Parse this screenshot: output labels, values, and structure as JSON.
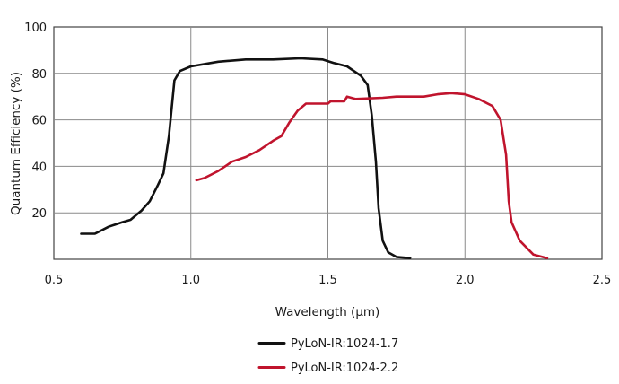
{
  "chart_data": {
    "type": "line",
    "xlabel": "Wavelength (µm)",
    "ylabel": "Quantum Efficiency  (%)",
    "xlim": [
      0.5,
      2.5
    ],
    "ylim": [
      0,
      100
    ],
    "x_ticks": [
      "0.5",
      "1.0",
      "1.5",
      "2.0",
      "2.5"
    ],
    "y_ticks": [
      "20",
      "40",
      "60",
      "80",
      "100"
    ],
    "grid": true,
    "legend_position": "bottom-center",
    "series": [
      {
        "name": "PyLoN-IR:1024-1.7",
        "color": "#111111",
        "points": [
          [
            0.6,
            11
          ],
          [
            0.65,
            11
          ],
          [
            0.7,
            14
          ],
          [
            0.75,
            16
          ],
          [
            0.78,
            17
          ],
          [
            0.82,
            21
          ],
          [
            0.85,
            25
          ],
          [
            0.88,
            32
          ],
          [
            0.9,
            37
          ],
          [
            0.92,
            53
          ],
          [
            0.94,
            77
          ],
          [
            0.96,
            81
          ],
          [
            1.0,
            83
          ],
          [
            1.1,
            85
          ],
          [
            1.2,
            86
          ],
          [
            1.3,
            86
          ],
          [
            1.4,
            86.5
          ],
          [
            1.48,
            86
          ],
          [
            1.52,
            84.5
          ],
          [
            1.57,
            83
          ],
          [
            1.62,
            79
          ],
          [
            1.645,
            75
          ],
          [
            1.66,
            62
          ],
          [
            1.675,
            42
          ],
          [
            1.685,
            22
          ],
          [
            1.7,
            8
          ],
          [
            1.72,
            3
          ],
          [
            1.75,
            1
          ],
          [
            1.8,
            0.5
          ]
        ]
      },
      {
        "name": "PyLoN-IR:1024-2.2",
        "color": "#c0142d",
        "points": [
          [
            1.02,
            34
          ],
          [
            1.05,
            35
          ],
          [
            1.1,
            38
          ],
          [
            1.15,
            42
          ],
          [
            1.2,
            44
          ],
          [
            1.25,
            47
          ],
          [
            1.3,
            51
          ],
          [
            1.33,
            53
          ],
          [
            1.36,
            59
          ],
          [
            1.39,
            64
          ],
          [
            1.42,
            67
          ],
          [
            1.5,
            67
          ],
          [
            1.51,
            68
          ],
          [
            1.56,
            68
          ],
          [
            1.57,
            70
          ],
          [
            1.6,
            69
          ],
          [
            1.7,
            69.5
          ],
          [
            1.75,
            70
          ],
          [
            1.8,
            70
          ],
          [
            1.85,
            70
          ],
          [
            1.9,
            71
          ],
          [
            1.95,
            71.5
          ],
          [
            2.0,
            71
          ],
          [
            2.05,
            69
          ],
          [
            2.1,
            66
          ],
          [
            2.13,
            60
          ],
          [
            2.15,
            45
          ],
          [
            2.16,
            25
          ],
          [
            2.17,
            16
          ],
          [
            2.2,
            8
          ],
          [
            2.25,
            2
          ],
          [
            2.3,
            0.5
          ]
        ]
      }
    ]
  }
}
